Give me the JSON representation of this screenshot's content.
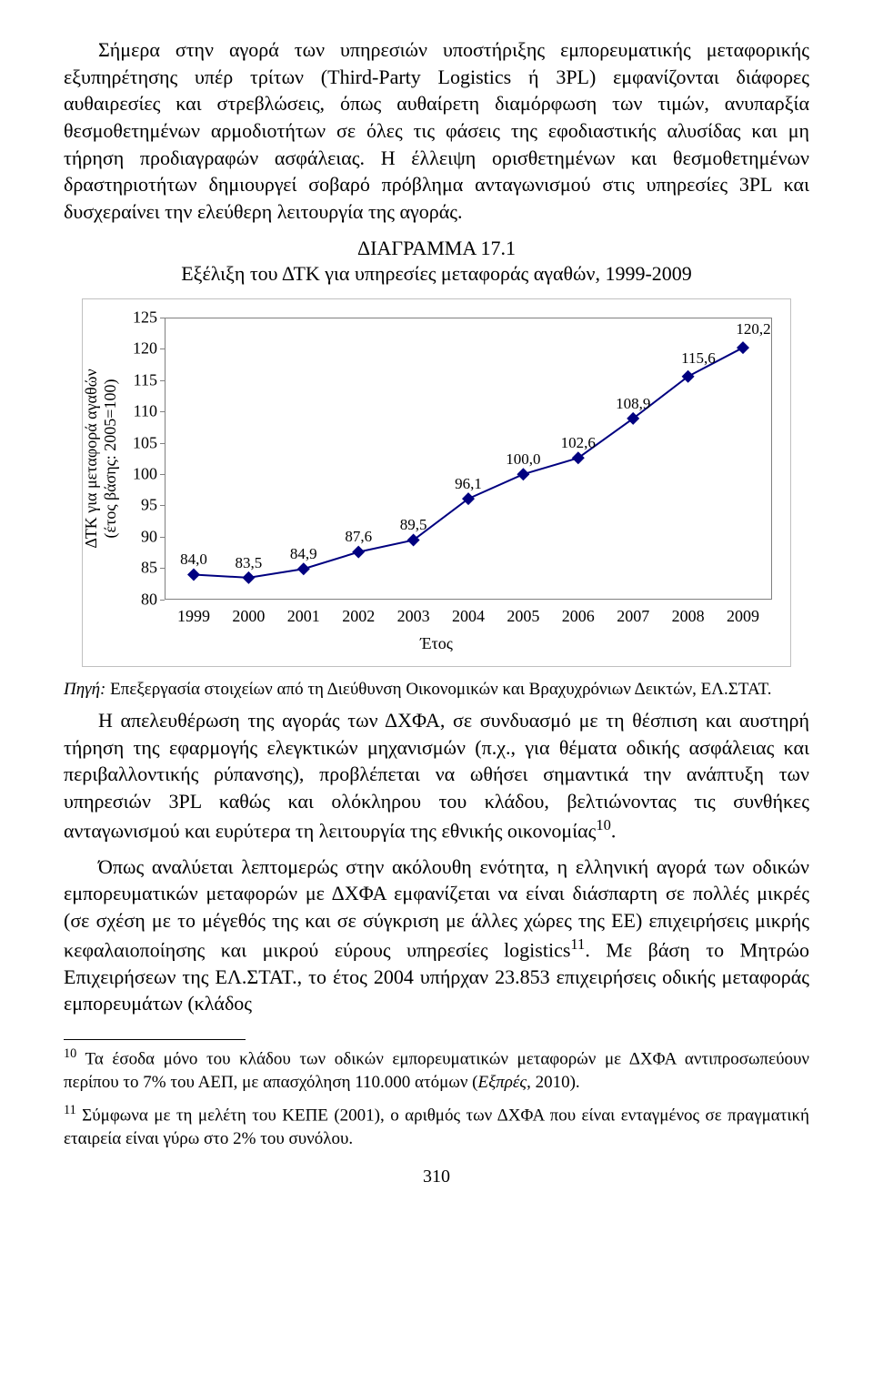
{
  "paragraphs": {
    "p1": "Σήμερα στην αγορά των υπηρεσιών υποστήριξης εμπορευματικής μεταφορικής εξυπηρέτησης υπέρ τρίτων (Third-Party Logistics ή 3PL) εμφανίζονται διάφορες αυθαιρεσίες και στρεβλώσεις, όπως αυθαίρετη διαμόρφωση των τιμών, ανυπαρξία θεσμοθετημένων αρμοδιοτήτων σε όλες τις φάσεις της εφοδιαστικής αλυσίδας και μη τήρηση προδιαγραφών ασφάλειας. Η έλλειψη ορισθετημένων και θεσμοθετημένων δραστηριοτήτων δημιουργεί σοβαρό πρόβλημα ανταγωνισμού στις υπηρεσίες 3PL και δυσχεραίνει την ελεύθερη λειτουργία της αγοράς.",
    "p2_a": "Η απελευθέρωση της αγοράς των ΔΧΦΑ, σε συνδυασμό με τη θέσπιση και αυστηρή τήρηση της εφαρμογής ελεγκτικών μηχανισμών (π.χ., για θέματα οδικής ασφάλειας και περιβαλλοντικής ρύπανσης), προβλέπεται να ωθήσει σημαντικά την ανάπτυξη των υπηρεσιών 3PL καθώς και ολόκληρου του κλάδου, βελτιώνοντας τις συνθήκες ανταγωνισμού και ευρύτερα τη λειτουργία της εθνικής οικονομίας",
    "p2_b": ".",
    "p3_a": "Όπως αναλύεται λεπτομερώς στην ακόλουθη ενότητα, η ελληνική αγορά των οδικών εμπορευματικών μεταφορών με ΔΧΦΑ εμφανίζεται να είναι διάσπαρτη σε πολλές μικρές (σε σχέση με το μέγεθός της και σε σύγκριση με άλλες χώρες της ΕΕ) επιχειρήσεις μικρής κεφαλαιοποίησης και μικρού εύρους υπηρεσίες logistics",
    "p3_b": ". Με βάση το Μητρώο Επιχειρήσεων της ΕΛ.ΣΤΑΤ., το έτος 2004 υπήρχαν 23.853 επιχειρήσεις οδικής μεταφοράς εμπορευμάτων (κλάδος"
  },
  "chart": {
    "title": "ΔΙΑΓΡΑΜΜΑ 17.1",
    "subtitle": "Εξέλιξη του ΔΤΚ για υπηρεσίες μεταφοράς αγαθών, 1999-2009",
    "ylabel_line1": "ΔΤΚ για μεταφορά αγαθών",
    "ylabel_line2": "(έτος βάσης: 2005=100)",
    "xaxis": "Έτος",
    "years": [
      "1999",
      "2000",
      "2001",
      "2002",
      "2003",
      "2004",
      "2005",
      "2006",
      "2007",
      "2008",
      "2009"
    ],
    "values": [
      84.0,
      83.5,
      84.9,
      87.6,
      89.5,
      96.1,
      100.0,
      102.6,
      108.9,
      115.6,
      120.2
    ],
    "labels": [
      "84,0",
      "83,5",
      "84,9",
      "87,6",
      "89,5",
      "96,1",
      "100,0",
      "102,6",
      "108,9",
      "115,6",
      "120,2"
    ],
    "yticks": [
      80,
      85,
      90,
      95,
      100,
      105,
      110,
      115,
      120,
      125
    ],
    "ylim_min": 80,
    "ylim_max": 125,
    "line_color": "#000080",
    "marker_color": "#000080",
    "marker_size": 7,
    "line_width": 2,
    "border_color": "#808080",
    "text_color": "#000000",
    "background": "#ffffff"
  },
  "source": {
    "label": "Πηγή:",
    "text": " Επεξεργασία στοιχείων από τη Διεύθυνση Οικονομικών και Βραχυχρόνιων Δεικτών, ΕΛ.ΣΤΑΤ."
  },
  "footnotes": {
    "f10_num": "10",
    "f10_a": " Τα έσοδα μόνο του κλάδου των οδικών εμπορευματικών μεταφορών με ΔΧΦΑ αντιπροσωπεύουν περίπου το 7% του ΑΕΠ, με απασχόληση 110.000 ατόμων (",
    "f10_i": "Εξπρές",
    "f10_b": ", 2010).",
    "f11_num": "11",
    "f11": " Σύμφωνα με τη μελέτη του ΚΕΠΕ (2001), ο αριθμός των ΔΧΦΑ που είναι ενταγμένος σε πραγματική εταιρεία είναι γύρω στο 2% του συνόλου."
  },
  "page_number": "310"
}
